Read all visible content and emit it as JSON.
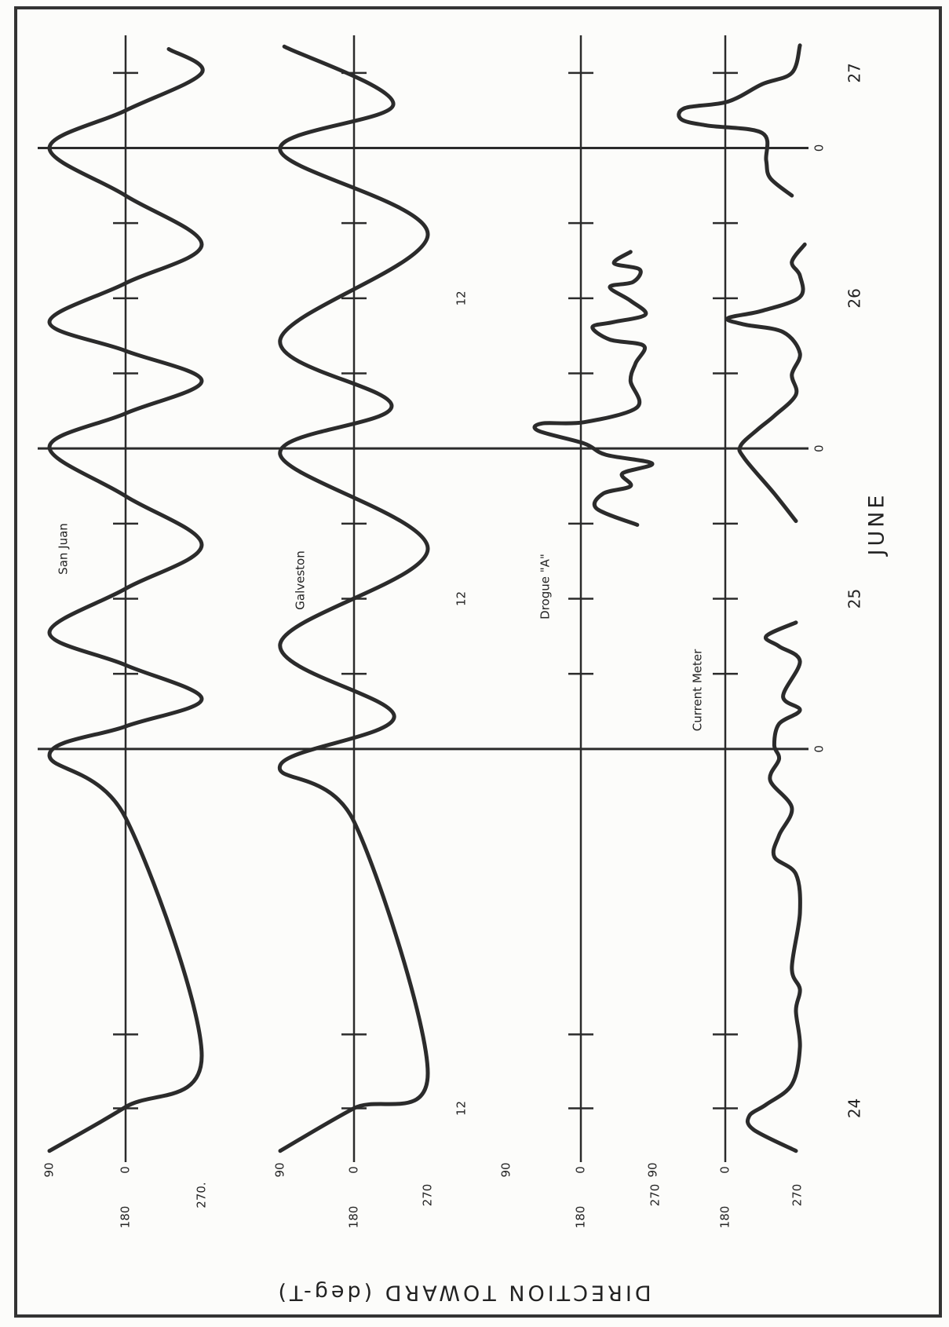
{
  "axis": {
    "y_title": "DIRECTION TOWARD (deg-T)",
    "x_title": "JUNE",
    "xlim": [
      -9,
      81
    ],
    "xticks": [
      -4.7,
      1.2,
      30,
      36,
      42,
      54,
      60,
      66,
      78
    ],
    "day_lines": [
      {
        "value": 24,
        "label": "0"
      },
      {
        "value": 48,
        "label": "0"
      },
      {
        "value": 72,
        "label": "0"
      }
    ],
    "day_labels": [
      {
        "value": -4.7,
        "label": "24"
      },
      {
        "value": 36,
        "label": "25"
      },
      {
        "value": 60,
        "label": "26"
      },
      {
        "value": 78,
        "label": "27"
      }
    ],
    "half_day_labels": [
      {
        "value": -4.7,
        "label": "12"
      },
      {
        "value": 36,
        "label": "12"
      },
      {
        "value": 60,
        "label": "12"
      }
    ]
  },
  "chart_data": [
    {
      "type": "line",
      "title": "San Juan",
      "color": "#2b2b2b",
      "ylim": [
        90,
        270
      ],
      "yticks": [
        90,
        {
          "value": 180,
          "label": "0"
        },
        180,
        {
          "value": 270,
          "label": "270."
        }
      ],
      "x": [
        -8.1,
        -4.6,
        -0.5,
        18.5,
        23.5,
        25.8,
        28.0,
        30.7,
        33.3,
        36.8,
        40.3,
        44.2,
        48.1,
        50.8,
        53.4,
        55.8,
        58.1,
        61.2,
        64.3,
        68.2,
        72.0,
        75.0,
        78.0,
        79.9
      ],
      "values": [
        90,
        180,
        270,
        180,
        90,
        180,
        270,
        180,
        90,
        180,
        270,
        180,
        90,
        180,
        270,
        180,
        90,
        180,
        270,
        180,
        90,
        180,
        270,
        231
      ]
    },
    {
      "type": "line",
      "title": "Galveston",
      "color": "#2b2b2b",
      "ylim": [
        90,
        270
      ],
      "yticks": [
        90,
        {
          "value": 180,
          "label": "0"
        },
        180,
        270
      ],
      "x": [
        -8.1,
        -4.7,
        -1.9,
        18.2,
        22.7,
        26.6,
        32.4,
        40.0,
        47.5,
        51.4,
        56.7,
        65.1,
        71.8,
        75.5,
        80.1
      ],
      "values": [
        90,
        180,
        270,
        180,
        90,
        229,
        90,
        270,
        90,
        226,
        90,
        270,
        90,
        228,
        95
      ]
    },
    {
      "type": "line",
      "title": "Drogue \"A\"",
      "color": "#2b2b2b",
      "ylim": [
        90,
        270
      ],
      "yticks": [
        90,
        {
          "value": 180,
          "label": "0"
        },
        180,
        270
      ],
      "x": [
        41.9,
        43.2,
        44.4,
        45.0,
        46.0,
        46.8,
        47.5,
        48.4,
        49.4,
        50.0,
        50.1,
        51.3,
        53.4,
        54.8,
        56.2,
        56.7,
        57.7,
        58.1,
        58.7,
        59.8,
        60.9,
        61.3,
        62.3,
        62.8,
        63.7
      ],
      "values": [
        248,
        199,
        207,
        240,
        230,
        266,
        210,
        184,
        129,
        133,
        184,
        248,
        240,
        246,
        256,
        215,
        194,
        220,
        258,
        240,
        215,
        243,
        251,
        220,
        240
      ]
    },
    {
      "type": "line",
      "title": "Current Meter",
      "color": "#2b2b2b",
      "ylim": [
        90,
        270
      ],
      "yticks": [
        90,
        {
          "value": 180,
          "label": "0"
        },
        180,
        270
      ],
      "x": [
        -8.1,
        -6.4,
        -5.3,
        -4.4,
        -2.8,
        0.2,
        3.1,
        4.8,
        6.5,
        10.9,
        14.0,
        15.4,
        17.1,
        19.3,
        21.5,
        23.2,
        24.3,
        26.0,
        27.1,
        28.2,
        31.0,
        32.2,
        33.0,
        34.1,
        38.0,
        42.2,
        44.4,
        47.2,
        48.2,
        49.5,
        50.6,
        52.3,
        53.9,
        55.6,
        57.3,
        57.9,
        58.4,
        59.0,
        60.1,
        61.8,
        62.9,
        64.3,
        66.0,
        68.2,
        69.6,
        71.0,
        73.2,
        73.8,
        74.3,
        75.2,
        75.7,
        77.1,
        78.0,
        80.2
      ],
      "values": [
        268,
        215,
        210,
        231,
        263,
        273,
        268,
        273,
        263,
        273,
        268,
        241,
        247,
        263,
        236,
        247,
        241,
        247,
        273,
        252,
        273,
        247,
        231,
        268,
        null,
        268,
        241,
        204,
        199,
        220,
        241,
        268,
        263,
        273,
        252,
        204,
        183,
        226,
        273,
        273,
        263,
        279,
        null,
        263,
        236,
        231,
        226,
        157,
        125,
        130,
        183,
        226,
        263,
        273
      ]
    }
  ]
}
